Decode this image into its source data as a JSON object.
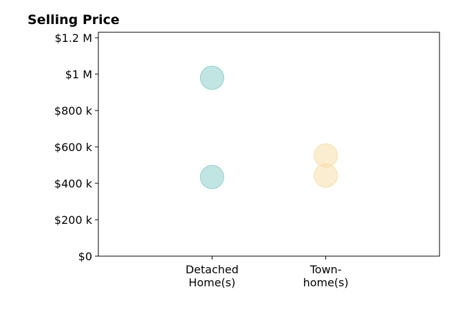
{
  "chart_data": {
    "type": "scatter",
    "title": "Selling Price",
    "xlabel": "",
    "ylabel": "",
    "categories": [
      [
        "Detached",
        "Home(s)"
      ],
      [
        "Town-",
        "home(s)"
      ]
    ],
    "x_range": [
      -1,
      2
    ],
    "ylim": [
      0,
      1230000
    ],
    "yticks": [
      0,
      200000,
      400000,
      600000,
      800000,
      1000000,
      1200000
    ],
    "ytick_labels": [
      "$0",
      "$200 k",
      "$400 k",
      "$600 k",
      "$800 k",
      "$1 M",
      "$1.2 M"
    ],
    "grid": false,
    "series": [
      {
        "category_index": 0,
        "color": "#8ecfca",
        "values": [
          980000,
          435000
        ]
      },
      {
        "category_index": 1,
        "color": "#f6deaa",
        "values": [
          553000,
          443000
        ]
      }
    ]
  }
}
